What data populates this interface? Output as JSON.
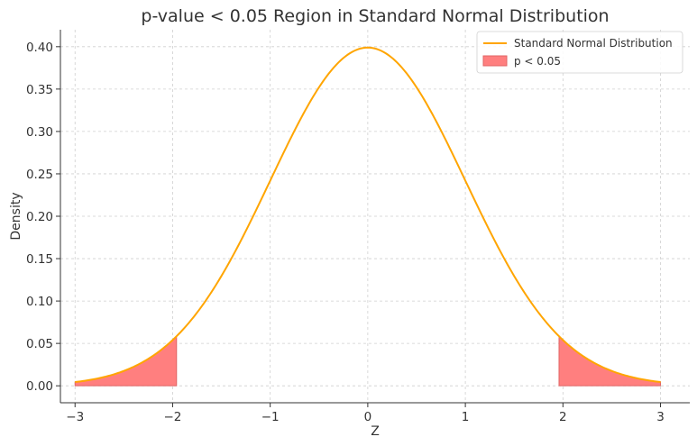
{
  "chart_data": {
    "type": "area",
    "title": "p-value < 0.05 Region in Standard Normal Distribution",
    "xlabel": "Z",
    "ylabel": "Density",
    "xlim": [
      -3.15,
      3.3
    ],
    "ylim": [
      -0.02,
      0.42
    ],
    "xticks": [
      -3,
      -2,
      -1,
      0,
      1,
      2,
      3
    ],
    "xtick_labels": [
      "−3",
      "−2",
      "−1",
      "0",
      "1",
      "2",
      "3"
    ],
    "yticks": [
      0.0,
      0.05,
      0.1,
      0.15,
      0.2,
      0.25,
      0.3,
      0.35,
      0.4
    ],
    "ytick_labels": [
      "0.00",
      "0.05",
      "0.10",
      "0.15",
      "0.20",
      "0.25",
      "0.30",
      "0.35",
      "0.40"
    ],
    "grid": true,
    "legend_position": "top-right",
    "series": [
      {
        "name": "Standard Normal Distribution",
        "kind": "line",
        "color": "#FFA500",
        "function": "standard-normal-pdf",
        "x_range": [
          -3,
          3
        ],
        "peak": 0.3989
      },
      {
        "name": "p < 0.05",
        "kind": "fill",
        "color": "#FF7F7F",
        "edge_color": "#E06666",
        "regions": [
          [
            -3,
            -1.96
          ],
          [
            1.96,
            3
          ]
        ]
      }
    ]
  }
}
